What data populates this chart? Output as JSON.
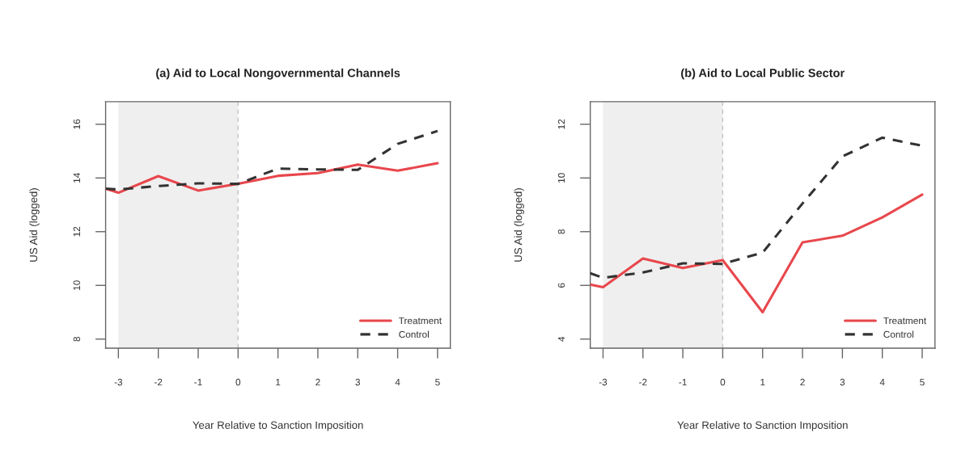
{
  "chart_data": [
    {
      "type": "line",
      "title": "(a) Aid to Local Nongovernmental Channels",
      "xlabel": "Year Relative to Sanction Imposition",
      "ylabel": "US Aid (logged)",
      "x": [
        -3.32,
        -3,
        -2,
        -1,
        0,
        1,
        2,
        3,
        4,
        5
      ],
      "xlim": [
        -3.32,
        5.32
      ],
      "xticks": [
        -3,
        -2,
        -1,
        0,
        1,
        2,
        3,
        4,
        5
      ],
      "ylim": [
        7.66,
        16.84
      ],
      "yticks": [
        8,
        10,
        12,
        14,
        16
      ],
      "series": [
        {
          "name": "Treatment",
          "color": "#e8474c",
          "line_style": "solid",
          "values": [
            13.6,
            13.45,
            14.07,
            13.53,
            13.78,
            14.08,
            14.18,
            14.5,
            14.27,
            14.55
          ]
        },
        {
          "name": "Control",
          "color": "#333333",
          "line_style": "dashed",
          "values": [
            13.6,
            13.57,
            13.7,
            13.8,
            13.78,
            14.35,
            14.32,
            14.3,
            15.27,
            15.75
          ]
        }
      ],
      "bands": [
        {
          "axis": "x",
          "from": -3,
          "to": 0,
          "color": "#efefef"
        }
      ],
      "ref_lines": [
        {
          "axis": "x",
          "value": 0,
          "color": "#c4c4c4",
          "line_style": "dashed"
        }
      ],
      "legend": "bottom right"
    },
    {
      "type": "line",
      "title": "(b) Aid to Local Public Sector",
      "xlabel": "Year Relative to Sanction Imposition",
      "ylabel": "US Aid (logged)",
      "x": [
        -3.32,
        -3,
        -2,
        -1,
        0,
        1,
        2,
        3,
        4,
        5
      ],
      "xlim": [
        -3.32,
        5.32
      ],
      "xticks": [
        -3,
        -2,
        -1,
        0,
        1,
        2,
        3,
        4,
        5
      ],
      "ylim": [
        3.66,
        12.84
      ],
      "yticks": [
        4,
        6,
        8,
        10,
        12
      ],
      "series": [
        {
          "name": "Treatment",
          "color": "#e8474c",
          "line_style": "solid",
          "values": [
            6.03,
            5.93,
            7.0,
            6.65,
            6.94,
            5.0,
            7.6,
            7.85,
            8.53,
            9.38
          ]
        },
        {
          "name": "Control",
          "color": "#333333",
          "line_style": "dashed",
          "values": [
            6.45,
            6.28,
            6.48,
            6.82,
            6.8,
            7.22,
            9.05,
            10.8,
            11.5,
            11.2
          ]
        }
      ],
      "bands": [
        {
          "axis": "x",
          "from": -3,
          "to": 0,
          "color": "#efefef"
        }
      ],
      "ref_lines": [
        {
          "axis": "x",
          "value": 0,
          "color": "#c4c4c4",
          "line_style": "dashed"
        }
      ],
      "legend": "bottom right"
    }
  ]
}
